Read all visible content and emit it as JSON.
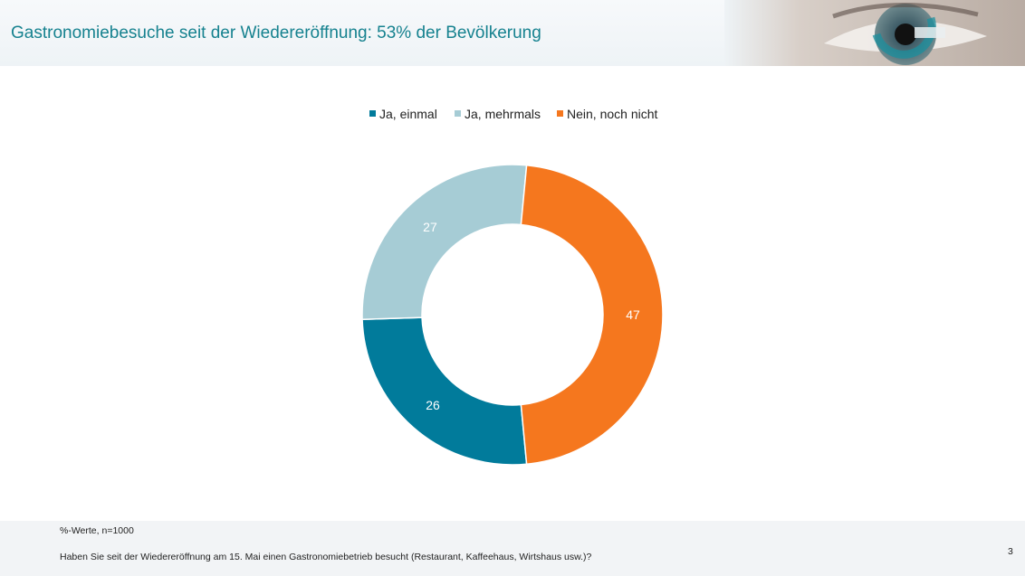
{
  "header": {
    "title": "Gastronomiebesuche seit der Wiedereröffnung: 53% der Bevölkerung"
  },
  "chart_data": {
    "type": "pie",
    "variant": "donut",
    "title": "",
    "categories": [
      "Ja, einmal",
      "Ja, mehrmals",
      "Nein, noch nicht"
    ],
    "values": [
      26,
      27,
      47
    ],
    "colors": [
      "#017b9b",
      "#a6ccd5",
      "#f5771e"
    ],
    "legend": [
      "Ja, einmal",
      "Ja, mehrmals",
      "Nein, noch nicht"
    ],
    "legend_position": "top",
    "data_labels": [
      "26",
      "27",
      "47"
    ]
  },
  "footer": {
    "note": "%-Werte, n=1000",
    "question": "Haben Sie seit der Wiedereröffnung am 15. Mai einen Gastronomiebetrieb besucht (Restaurant, Kaffeehaus, Wirtshaus usw.)?",
    "page_number": "3"
  }
}
